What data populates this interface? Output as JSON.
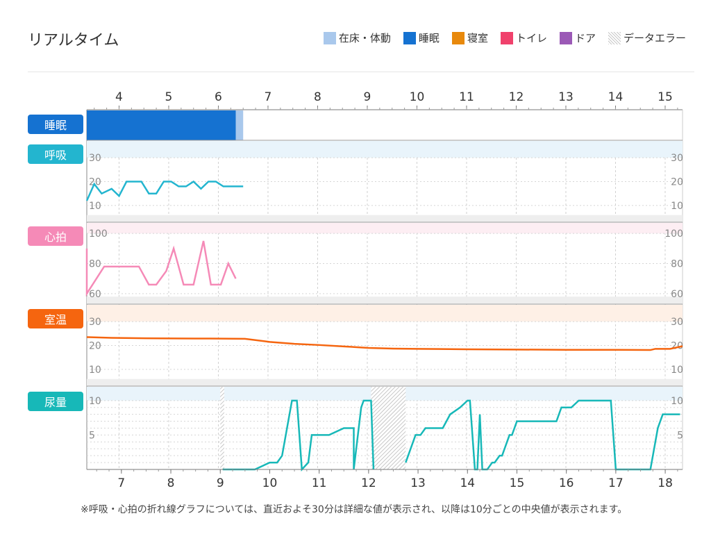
{
  "header": {
    "title": "リアルタイム"
  },
  "legend": [
    {
      "label": "在床・体動",
      "color": "#a9c8ec",
      "pattern": false
    },
    {
      "label": "睡眠",
      "color": "#1572d1",
      "pattern": false
    },
    {
      "label": "寝室",
      "color": "#e8890c",
      "pattern": false
    },
    {
      "label": "トイレ",
      "color": "#f0416c",
      "pattern": false
    },
    {
      "label": "ドア",
      "color": "#9b59b6",
      "pattern": false
    },
    {
      "label": "データエラー",
      "color": "#bdbdbd",
      "pattern": true
    }
  ],
  "rows": {
    "sleep": {
      "label": "睡眠",
      "color": "#1572d1"
    },
    "resp": {
      "label": "呼吸",
      "color": "#23b5cf"
    },
    "heart": {
      "label": "心拍",
      "color": "#f58ab7"
    },
    "temp": {
      "label": "室温",
      "color": "#f5650f"
    },
    "urine": {
      "label": "尿量",
      "color": "#17b8b8"
    }
  },
  "note": "※呼吸・心拍の折れ線グラフについては、直近およそ30分は詳細な値が表示され、以降は10分ごとの中央値が表示されます。",
  "chart_data": {
    "type": "line",
    "top_axis": {
      "ticks": [
        4,
        5,
        6,
        7,
        8,
        9,
        10,
        11,
        12,
        13,
        14,
        15
      ],
      "range": [
        3.35,
        15.35
      ]
    },
    "bottom_axis": {
      "ticks": [
        7,
        8,
        9,
        10,
        11,
        12,
        13,
        14,
        15,
        16,
        17,
        18
      ],
      "range": [
        6.3,
        18.35
      ]
    },
    "sleep": {
      "segments": [
        {
          "state": "睡眠",
          "start": 3.35,
          "end": 6.35,
          "color": "#1572d1"
        },
        {
          "state": "在床・体動",
          "start": 6.35,
          "end": 6.5,
          "color": "#a9c8ec"
        }
      ]
    },
    "respiration": {
      "yticks": [
        10,
        20,
        30
      ],
      "ylim": [
        3,
        37
      ],
      "band": [
        30,
        37
      ],
      "low_band": [
        3,
        6
      ],
      "color": "#23b5cf",
      "x": [
        3.35,
        3.5,
        3.65,
        3.85,
        4.0,
        4.15,
        4.3,
        4.45,
        4.6,
        4.75,
        4.9,
        5.05,
        5.2,
        5.35,
        5.5,
        5.65,
        5.8,
        5.95,
        6.1,
        6.25,
        6.35,
        6.5
      ],
      "y": [
        12,
        19,
        15,
        17,
        14,
        20,
        20,
        20,
        15,
        15,
        20,
        20,
        18,
        18,
        20,
        17,
        20,
        20,
        18,
        18,
        18,
        18
      ]
    },
    "heart_rate": {
      "yticks": [
        60,
        80,
        100
      ],
      "ylim": [
        53,
        107
      ],
      "band": [
        100,
        107
      ],
      "low_band": [
        53,
        58
      ],
      "color": "#f58ab7",
      "x": [
        3.35,
        3.35,
        3.35,
        3.7,
        4.15,
        4.4,
        4.6,
        4.75,
        4.95,
        5.1,
        5.3,
        5.5,
        5.7,
        5.85,
        6.05,
        6.2,
        6.35
      ],
      "y": [
        90,
        60,
        60,
        78,
        78,
        78,
        66,
        66,
        75,
        90,
        66,
        66,
        95,
        66,
        66,
        80,
        70
      ]
    },
    "room_temp": {
      "yticks": [
        10,
        20,
        30
      ],
      "ylim": [
        3,
        37
      ],
      "band": [
        30,
        37
      ],
      "low_band": [
        3,
        6
      ],
      "color": "#f5650f",
      "x": [
        6.3,
        6.8,
        7.5,
        8.5,
        8.8,
        9.5,
        10.0,
        10.5,
        11.0,
        11.5,
        12.0,
        12.5,
        13.0,
        14.0,
        15.0,
        16.0,
        17.0,
        17.7,
        17.8,
        18.1,
        18.35
      ],
      "y": [
        23.5,
        23.2,
        23.0,
        22.9,
        22.9,
        22.8,
        21.5,
        20.7,
        20.2,
        19.6,
        19.0,
        18.7,
        18.6,
        18.4,
        18.3,
        18.2,
        18.2,
        18.1,
        18.6,
        18.6,
        19.7
      ]
    },
    "urine": {
      "yticks": [
        5,
        10
      ],
      "ylim": [
        0,
        12
      ],
      "band": [
        10,
        12
      ],
      "color": "#17b8b8",
      "x": [
        9.05,
        9.2,
        9.7,
        10.0,
        10.15,
        10.25,
        10.45,
        10.55,
        10.65,
        10.78,
        10.85,
        11.1,
        11.2,
        11.5,
        11.55,
        11.7,
        11.7,
        11.85,
        11.9,
        12.05,
        12.1,
        12.75,
        12.95,
        13.05,
        13.15,
        13.5,
        13.65,
        13.85,
        14.0,
        14.05,
        14.15,
        14.2,
        14.25,
        14.3,
        14.4,
        14.5,
        14.55,
        14.65,
        14.7,
        14.8,
        14.85,
        14.9,
        15.0,
        15.1,
        15.15,
        15.8,
        15.9,
        16.1,
        16.25,
        16.9,
        17.0,
        17.7,
        17.85,
        17.95,
        18.05,
        18.3
      ],
      "y": [
        0,
        0,
        0,
        1,
        1,
        2,
        10,
        10,
        0,
        1,
        5,
        5,
        5,
        6,
        6,
        6,
        0,
        9,
        10,
        10,
        0,
        1,
        5,
        5,
        6,
        6,
        8,
        9,
        10,
        10,
        0,
        0,
        8,
        0,
        0,
        1,
        1,
        2,
        2,
        4,
        5,
        5,
        7,
        7,
        7,
        7,
        9,
        9,
        10,
        10,
        0,
        0,
        6,
        8,
        8,
        8
      ],
      "error_bands": [
        [
          9.0,
          9.08
        ],
        [
          12.05,
          12.75
        ]
      ]
    }
  }
}
